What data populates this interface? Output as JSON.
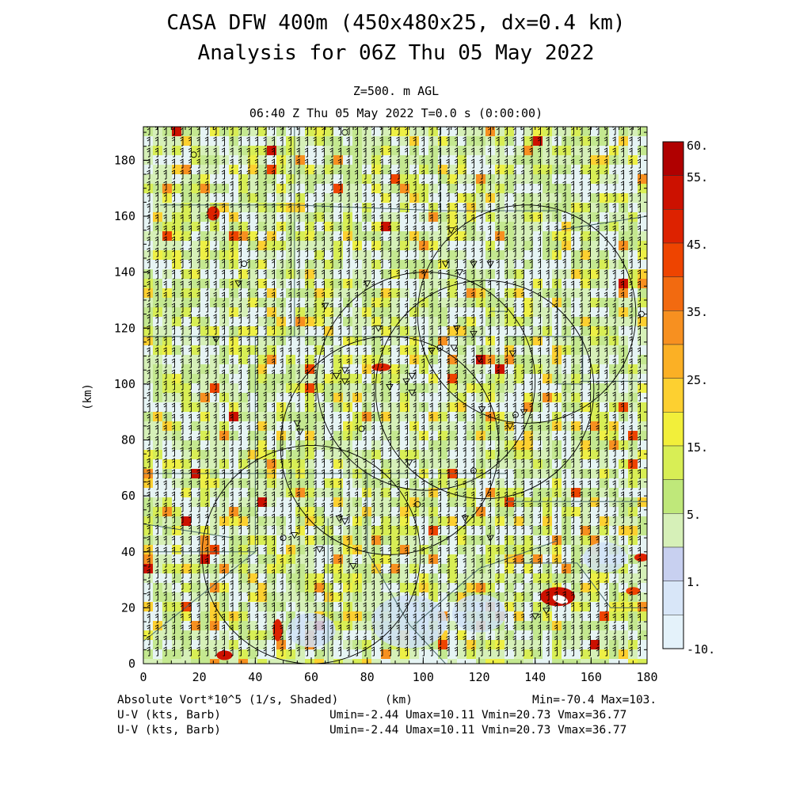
{
  "title_line1": "CASA DFW 400m (450x480x25, dx=0.4 km)",
  "title_line2": "Analysis for 06Z Thu 05 May 2022",
  "level_label": "Z=500. m AGL",
  "time_label": "06:40 Z Thu 05 May 2022   T=0.0 s (0:00:00)",
  "footer": {
    "field1": "Absolute Vort*10^5 (1/s, Shaded)",
    "xunit": "(km)",
    "minmax": "Min=-70.4 Max=103.",
    "field2": "U-V (kts, Barb)",
    "field3": "U-V (kts, Barb)",
    "stats2": "Umin=-2.44 Umax=10.11 Vmin=20.73 Vmax=36.77",
    "stats3": "Umin=-2.44 Umax=10.11 Vmin=20.73 Vmax=36.77"
  },
  "chart_data": {
    "type": "heatmap",
    "title": "CASA DFW 400m (450x480x25, dx=0.4 km)",
    "subtitle": "Analysis for 06Z Thu 05 May 2022",
    "xlabel": "(km)",
    "ylabel": "(km)",
    "xlim": [
      0,
      180
    ],
    "ylim": [
      0,
      192
    ],
    "xticks": [
      0,
      20,
      40,
      60,
      80,
      100,
      120,
      140,
      160,
      180
    ],
    "yticks": [
      0,
      20,
      40,
      60,
      80,
      100,
      120,
      140,
      160,
      180
    ],
    "field": "Absolute Vort*10^5 (1/s, Shaded)",
    "min": -70.4,
    "max": 103,
    "colorbar": {
      "labels": [
        "60.",
        "55.",
        "45.",
        "35.",
        "25.",
        "15.",
        "5.",
        "1.",
        "-10."
      ],
      "colors": [
        "#b00000",
        "#cc1100",
        "#dd2200",
        "#ee4400",
        "#f26a10",
        "#f79020",
        "#fbb025",
        "#fdd030",
        "#f2ef3a",
        "#d8ee55",
        "#bfe87a",
        "#d6f0b8",
        "#c8d0f0",
        "#d8e6f8",
        "#e4f2fa"
      ]
    },
    "radar_circles_center_km": [
      [
        137,
        125
      ],
      [
        122,
        98
      ],
      [
        88,
        78
      ],
      [
        101,
        101
      ],
      [
        60,
        39
      ]
    ],
    "radar_radius_km": 39,
    "wind_barbs": {
      "units": "kts",
      "umin": -2.44,
      "umax": 10.11,
      "vmin": 20.73,
      "vmax": 36.77
    }
  }
}
